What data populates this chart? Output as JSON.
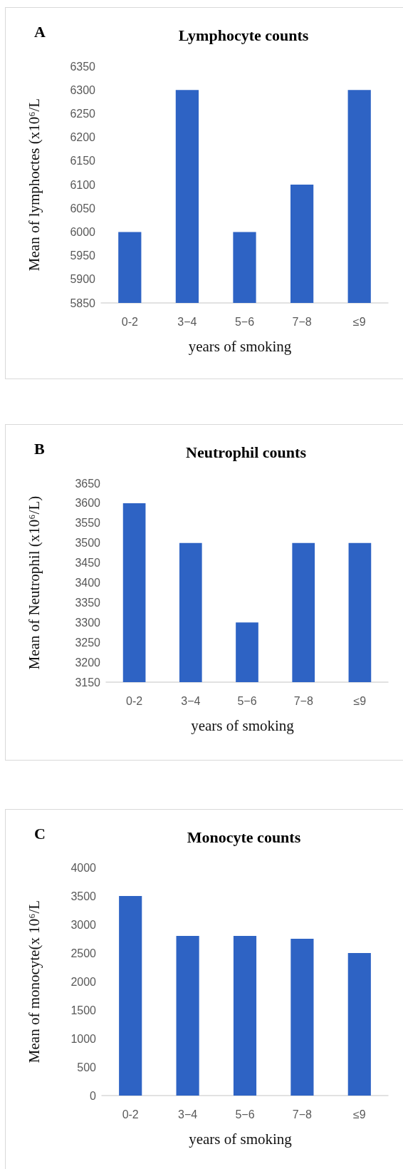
{
  "chart_data": [
    {
      "type": "bar",
      "title": "Lymphocyte counts",
      "annotations": [
        "A"
      ],
      "xlabel": "years of smoking",
      "ylabel": "Mean of lymphoctes (x10⁶/L",
      "categories": [
        "0-2",
        "3−4",
        "5−6",
        "7−8",
        "≤9"
      ],
      "values": [
        6000,
        6300,
        6000,
        6100,
        6300
      ],
      "color": "#2e63c4",
      "ylim": [
        5850,
        6350
      ],
      "yticks": [
        5850,
        5900,
        5950,
        6000,
        6050,
        6100,
        6150,
        6200,
        6250,
        6300,
        6350
      ],
      "grid": false
    },
    {
      "type": "bar",
      "title": "Neutrophil counts",
      "annotations": [
        "B"
      ],
      "xlabel": "years of smoking",
      "ylabel": "Mean of Neutrophil (x10⁶/L)",
      "categories": [
        "0-2",
        "3−4",
        "5−6",
        "7−8",
        "≤9"
      ],
      "values": [
        3600,
        3500,
        3300,
        3500,
        3500
      ],
      "color": "#2e63c4",
      "ylim": [
        3150,
        3650
      ],
      "yticks": [
        3150,
        3200,
        3250,
        3300,
        3350,
        3400,
        3450,
        3500,
        3550,
        3600,
        3650
      ],
      "grid": false
    },
    {
      "type": "bar",
      "title": "Monocyte counts",
      "annotations": [
        "C"
      ],
      "xlabel": "years of smoking",
      "ylabel": "Mean of monocyte(x 10⁶/L",
      "categories": [
        "0-2",
        "3−4",
        "5−6",
        "7−8",
        "≤9"
      ],
      "values": [
        3500,
        2800,
        2800,
        2750,
        2500
      ],
      "color": "#2e63c4",
      "ylim": [
        0,
        4000
      ],
      "yticks": [
        0,
        500,
        1000,
        1500,
        2000,
        2500,
        3000,
        3500,
        4000
      ],
      "grid": false
    }
  ]
}
